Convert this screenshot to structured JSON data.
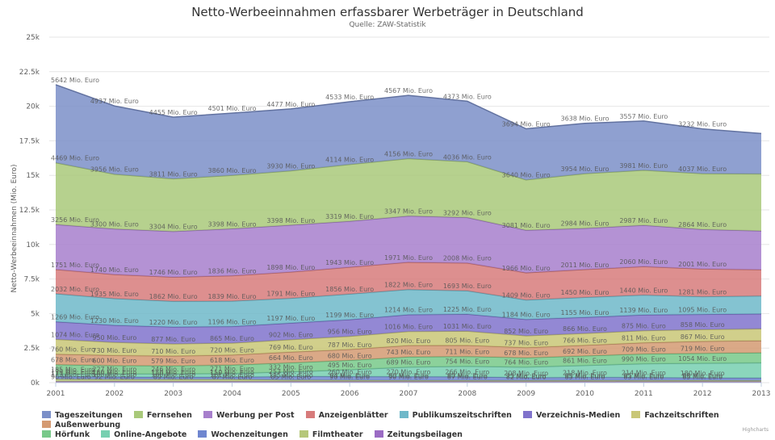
{
  "chart_data": {
    "type": "area",
    "stacked": true,
    "title": "Netto-Werbeeinnahmen erfassbarer Werbeträger in Deutschland",
    "subtitle": "Quelle: ZAW-Statistik",
    "xlabel": "",
    "ylabel": "Netto-Werbeeinnahmen (Mio. Euro)",
    "ylim": [
      0,
      25000
    ],
    "yticks": [
      0,
      2500,
      5000,
      7500,
      10000,
      12500,
      15000,
      17500,
      20000,
      22500,
      25000
    ],
    "ytick_labels": [
      "0k",
      "2.5k",
      "5k",
      "7.5k",
      "10k",
      "12.5k",
      "15k",
      "17.5k",
      "20k",
      "22.5k",
      "25k"
    ],
    "x": [
      "2001",
      "2002",
      "2003",
      "2004",
      "2005",
      "2006",
      "2007",
      "2008",
      "2009",
      "2010",
      "2011",
      "2012",
      "2013"
    ],
    "grid": true,
    "legend_position": "bottom",
    "label_suffix": " Mio. Euro",
    "series": [
      {
        "name": "Tageszeitungen",
        "color": "#7b8fc8",
        "values": [
          5642,
          4937,
          4455,
          4501,
          4477,
          4533,
          4567,
          4373,
          3694,
          3638,
          3557,
          3232,
          2920
        ]
      },
      {
        "name": "Fernsehen",
        "color": "#a9c97a",
        "values": [
          4469,
          3956,
          3811,
          3860,
          3930,
          4114,
          4156,
          4036,
          3640,
          3954,
          3981,
          4037,
          4125
        ]
      },
      {
        "name": "Werbung per Post",
        "color": "#a77fcc",
        "values": [
          3256,
          3300,
          3304,
          3398,
          3398,
          3319,
          3347,
          3292,
          3081,
          2984,
          2987,
          2864,
          2800
        ]
      },
      {
        "name": "Anzeigenblätter",
        "color": "#d77b7b",
        "values": [
          1751,
          1740,
          1746,
          1836,
          1898,
          1943,
          1971,
          2008,
          1966,
          2011,
          2060,
          2001,
          1900
        ]
      },
      {
        "name": "Publikumszeitschriften",
        "color": "#6fb8c9",
        "values": [
          2032,
          1935,
          1862,
          1839,
          1791,
          1856,
          1822,
          1693,
          1409,
          1450,
          1440,
          1281,
          1300
        ]
      },
      {
        "name": "Verzeichnis-Medien",
        "color": "#8073cc",
        "values": [
          1269,
          1230,
          1220,
          1196,
          1197,
          1199,
          1214,
          1225,
          1184,
          1155,
          1139,
          1095,
          1080
        ]
      },
      {
        "name": "Fachzeitschriften",
        "color": "#c9c777",
        "values": [
          1074,
          950,
          877,
          865,
          902,
          956,
          1016,
          1031,
          852,
          866,
          875,
          858,
          860
        ]
      },
      {
        "name": "Außenwerbung",
        "color": "#d49a72",
        "values": [
          760,
          730,
          710,
          720,
          769,
          787,
          820,
          805,
          737,
          766,
          811,
          867,
          870
        ]
      },
      {
        "name": "Hörfunk",
        "color": "#78c98a",
        "values": [
          678,
          600,
          579,
          618,
          664,
          680,
          743,
          711,
          678,
          692,
          709,
          719,
          730
        ]
      },
      {
        "name": "Online-Angebote",
        "color": "#77cfb0",
        "values": [
          185,
          227,
          246,
          271,
          332,
          495,
          689,
          754,
          764,
          861,
          990,
          1054,
          1100
        ]
      },
      {
        "name": "Wochenzeitungen",
        "color": "#6f86cf",
        "values": [
          179,
          160,
          150,
          150,
          253,
          260,
          270,
          266,
          208,
          218,
          214,
          180,
          180
        ]
      },
      {
        "name": "Filmtheater",
        "color": "#b5c77a",
        "values": [
          172,
          165,
          160,
          161,
          115,
          94,
          80,
          80,
          75,
          85,
          85,
          88,
          80
        ]
      },
      {
        "name": "Zeitungsbeilagen",
        "color": "#9b6cc4",
        "values": [
          90,
          92,
          89,
          87,
          85,
          90,
          90,
          87,
          82,
          85,
          83,
          85,
          80
        ]
      }
    ]
  },
  "credits": "Highcharts"
}
